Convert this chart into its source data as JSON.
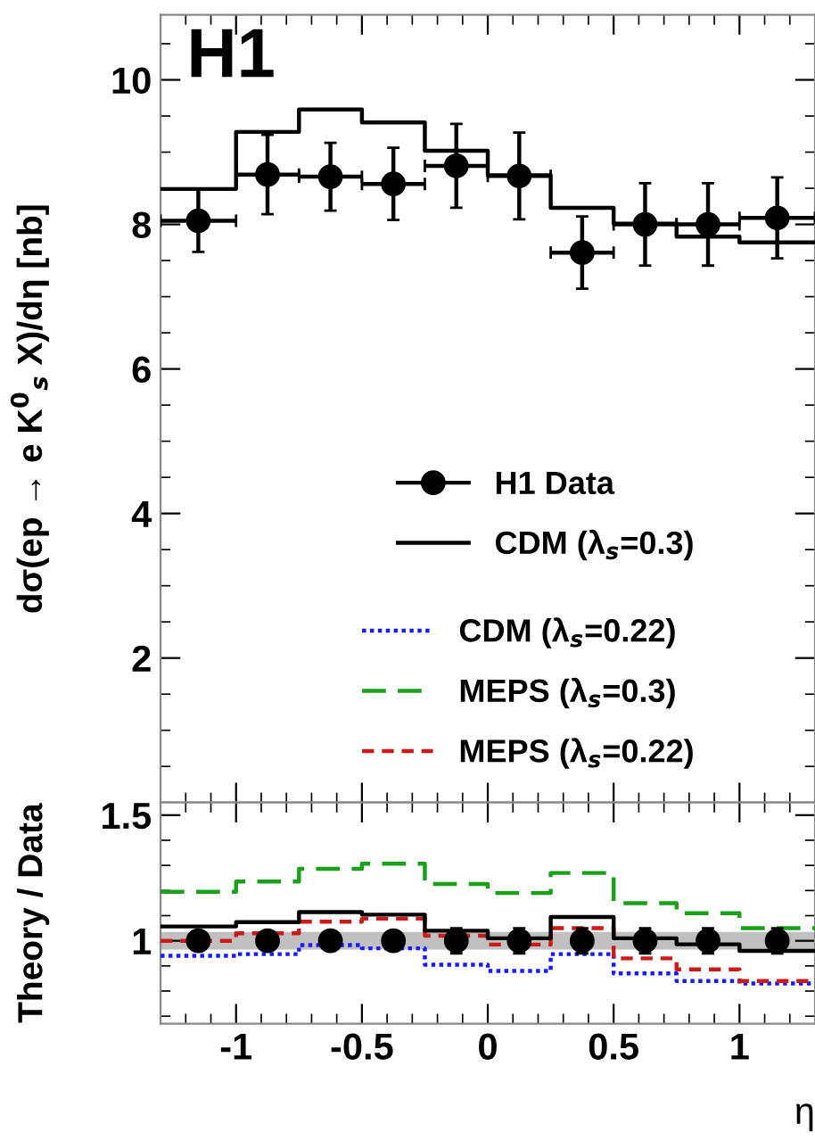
{
  "chart_data": [
    {
      "type": "scatter",
      "ylabel": "dσ(ep → e K$^{0}$$_{s}$ X)/dη [nb]",
      "annotations": [
        "H1"
      ],
      "xlim": [
        -1.3,
        1.3
      ],
      "ylim": [
        0,
        10.9
      ],
      "xticks": [
        {
          "value": -1,
          "label": null
        },
        {
          "value": -0.5,
          "label": null
        },
        {
          "value": 0,
          "label": null
        },
        {
          "value": 0.5,
          "label": null
        },
        {
          "value": 1,
          "label": null
        }
      ],
      "yticks": [
        2,
        4,
        6,
        8,
        10
      ],
      "tick_labels": "y",
      "legend": "bottom right",
      "grid": false,
      "series": [
        {
          "name": "H1 Data",
          "color": "#000000",
          "marker": "circle",
          "x": [
            -1.15,
            -0.875,
            -0.625,
            -0.375,
            -0.125,
            0.125,
            0.375,
            0.625,
            0.875,
            1.15
          ],
          "values": [
            8.05,
            8.69,
            8.66,
            8.56,
            8.81,
            8.67,
            7.61,
            8.0,
            8.0,
            8.09
          ],
          "errors": [
            0.43,
            0.55,
            0.47,
            0.5,
            0.58,
            0.6,
            0.5,
            0.57,
            0.57,
            0.56
          ],
          "xerrors": [
            0.15,
            0.125,
            0.125,
            0.125,
            0.125,
            0.125,
            0.125,
            0.125,
            0.125,
            0.15
          ]
        },
        {
          "name": "CDM (λ$_{s}$=0.3)",
          "type": "step",
          "color": "#000000",
          "line_style": "solid",
          "x": [
            -1.3,
            -1.0,
            -0.75,
            -0.5,
            -0.25,
            0,
            0.25,
            0.5,
            0.75,
            1.0,
            1.3
          ],
          "values": [
            8.49,
            9.28,
            9.59,
            9.41,
            9.02,
            8.68,
            8.23,
            8.01,
            7.83,
            7.75,
            7.75
          ]
        }
      ]
    },
    {
      "type": "step",
      "ylabel": "Theory / Data",
      "xlabel": "η",
      "xlim": [
        -1.3,
        1.3
      ],
      "ylim": [
        0.67,
        1.55
      ],
      "xticks": [
        -1,
        -0.5,
        0,
        0.5,
        1
      ],
      "yticks": [
        1,
        1.5
      ],
      "grid": false,
      "legend": "top right",
      "bands": [
        {
          "axis": "y",
          "from": 0.965,
          "to": 1.035,
          "color": "#c0c0c0"
        }
      ],
      "series": [
        {
          "color": "#1a1aff",
          "line_style": "dotted",
          "name": "CDM (λ$_{s}$=0.22)",
          "x": [
            -1.3,
            -1.0,
            -0.75,
            -0.5,
            -0.25,
            0,
            0.25,
            0.5,
            0.75,
            1.0,
            1.3
          ],
          "values": [
            0.94,
            0.947,
            0.983,
            0.97,
            0.905,
            0.88,
            0.947,
            0.87,
            0.84,
            0.83,
            0.83
          ]
        },
        {
          "color": "#1aa01a",
          "line_style": "dashed",
          "name": "MEPS (λ$_{s}$=0.3)",
          "x": [
            -1.3,
            -1.0,
            -0.75,
            -0.5,
            -0.25,
            0,
            0.25,
            0.5,
            0.75,
            1.0,
            1.3
          ],
          "values": [
            1.195,
            1.236,
            1.286,
            1.307,
            1.226,
            1.19,
            1.27,
            1.15,
            1.11,
            1.05,
            1.05
          ]
        },
        {
          "color": "#cc1a1a",
          "line_style": "dashed",
          "name": "MEPS (λ$_{s}$=0.22)",
          "x": [
            -1.3,
            -1.0,
            -0.75,
            -0.5,
            -0.25,
            0,
            0.25,
            0.5,
            0.75,
            1.0,
            1.3
          ],
          "values": [
            1.0,
            1.03,
            1.076,
            1.088,
            1.02,
            0.985,
            1.05,
            0.93,
            0.886,
            0.84,
            0.84
          ]
        },
        {
          "color": "#000000",
          "line_style": "solid",
          "x": [
            -1.3,
            -1.0,
            -0.75,
            -0.5,
            -0.25,
            0,
            0.25,
            0.5,
            0.75,
            1.0,
            1.3
          ],
          "values": [
            1.057,
            1.074,
            1.114,
            1.104,
            1.04,
            1.01,
            1.095,
            1.01,
            0.986,
            0.96,
            0.96
          ]
        },
        {
          "type": "scatter",
          "color": "#000000",
          "marker": "circle",
          "x": [
            -1.15,
            -0.875,
            -0.625,
            -0.375,
            -0.125,
            0.125,
            0.375,
            0.625,
            0.875,
            1.15
          ],
          "values": [
            1,
            1,
            1,
            1,
            1,
            1,
            1,
            1,
            1,
            1
          ],
          "errors": [
            0.03,
            0.03,
            0.03,
            0.03,
            0.05,
            0.05,
            0.05,
            0.05,
            0.05,
            0.05
          ]
        }
      ]
    }
  ]
}
